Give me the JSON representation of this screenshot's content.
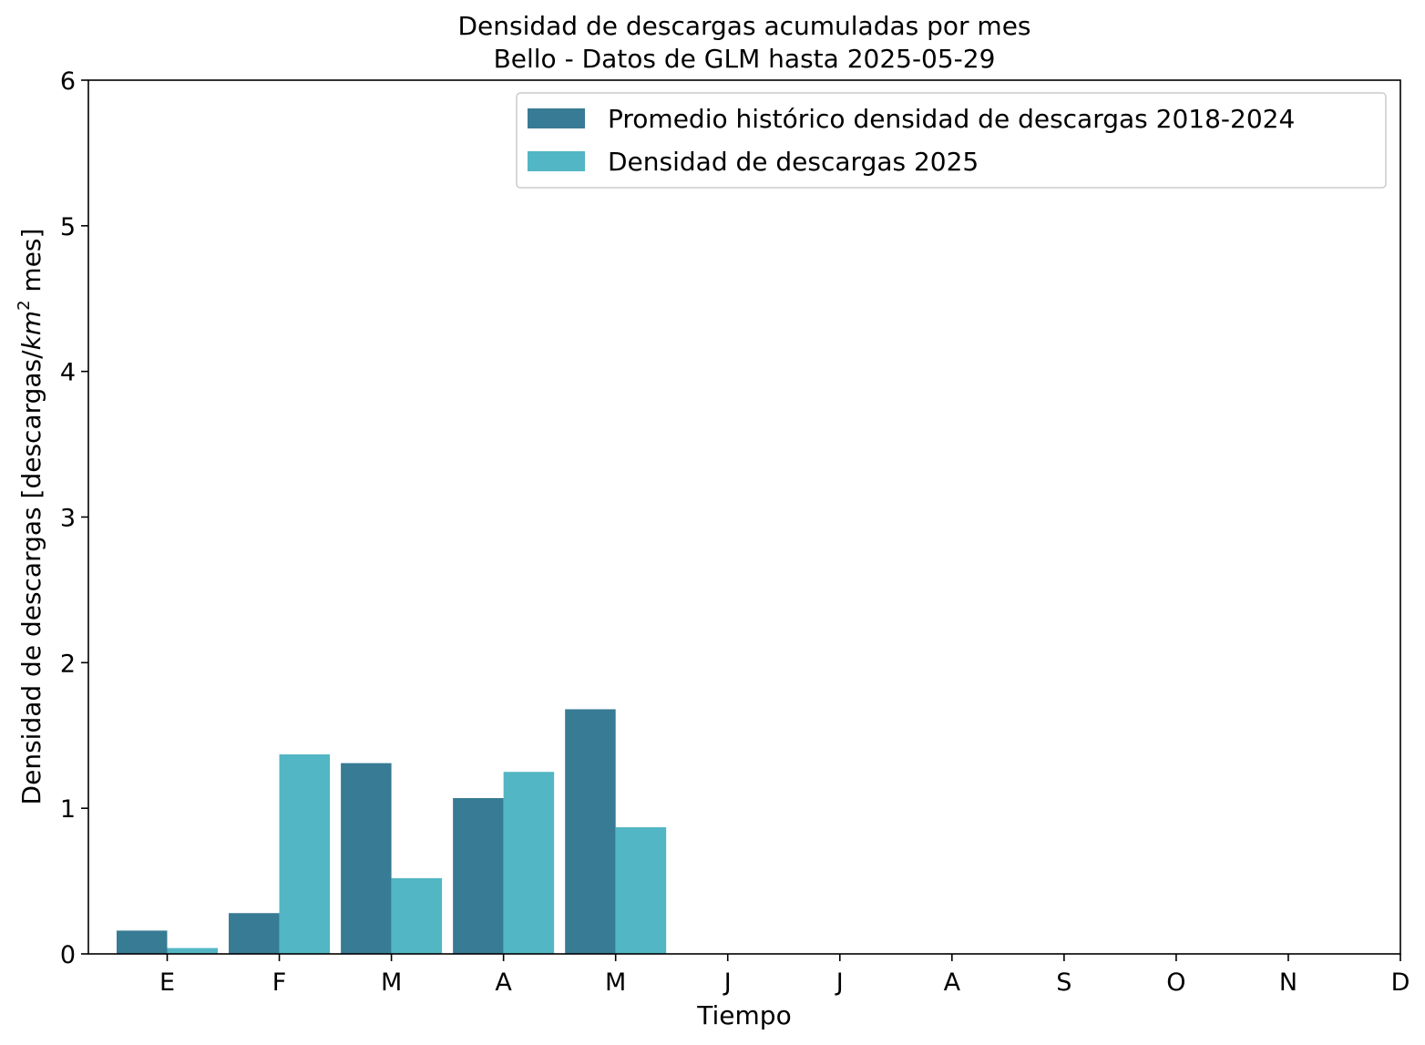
{
  "chart_data": {
    "type": "bar",
    "title": "Densidad de descargas acumuladas por mes",
    "subtitle": "Bello - Datos de GLM hasta 2025-05-29",
    "xlabel": "Tiempo",
    "ylabel_main": "Densidad de descargas [descargas/",
    "ylabel_unit_base": "km",
    "ylabel_unit_exp": "2",
    "ylabel_tail": " mes]",
    "categories": [
      "E",
      "F",
      "M",
      "A",
      "M",
      "J",
      "J",
      "A",
      "S",
      "O",
      "N",
      "D"
    ],
    "yticks": [
      "0",
      "1",
      "2",
      "3",
      "4",
      "5",
      "6"
    ],
    "ylim": [
      0,
      6
    ],
    "grid": false,
    "legend_position": "top-right",
    "series": [
      {
        "name": "Promedio histórico densidad de descargas 2018-2024",
        "color": "#377b94",
        "values": [
          0.16,
          0.28,
          1.31,
          1.07,
          1.68,
          null,
          null,
          null,
          null,
          null,
          null,
          null
        ]
      },
      {
        "name": "Densidad de descargas 2025",
        "color": "#52b6c4",
        "values": [
          0.04,
          1.37,
          0.52,
          1.25,
          0.87,
          null,
          null,
          null,
          null,
          null,
          null,
          null
        ]
      }
    ]
  }
}
